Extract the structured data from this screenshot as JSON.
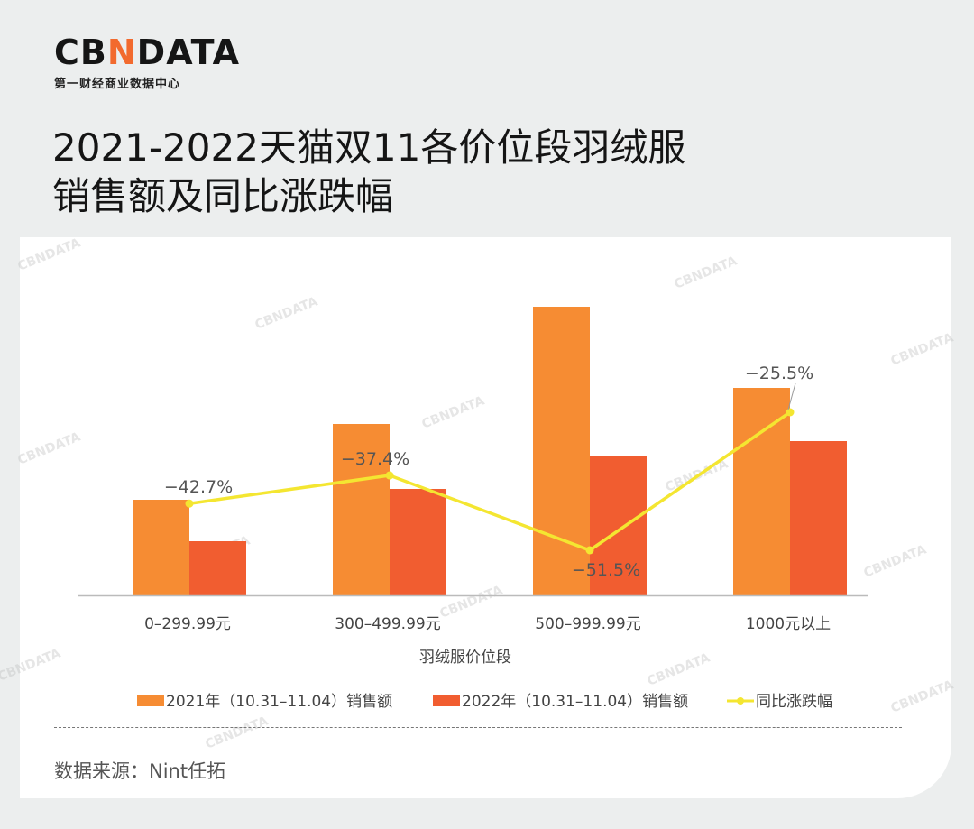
{
  "logo": {
    "main_pre": "CB",
    "main_accent": "N",
    "main_post": "DATA",
    "sub": "第一财经商业数据中心"
  },
  "title_line1": "2021-2022天猫双11各价位段羽绒服",
  "title_line2": "销售额及同比涨跌幅",
  "source": "数据来源：Nint任拓",
  "colors": {
    "bar2021": "#f68c33",
    "bar2022": "#f15d30",
    "line": "#f4e631",
    "axis": "#bbbbbb",
    "text": "#444444"
  },
  "chart_data": {
    "type": "bar+line",
    "xlabel": "羽绒服价位段",
    "categories": [
      "0–299.99元",
      "300–499.99元",
      "500–999.99元",
      "1000元以上"
    ],
    "series": [
      {
        "name": "2021年（10.31–11.04）销售额",
        "type": "bar",
        "values": [
          106,
          190,
          320,
          230
        ]
      },
      {
        "name": "2022年（10.31–11.04）销售额",
        "type": "bar",
        "values": [
          60,
          118,
          155,
          171
        ]
      },
      {
        "name": "同比涨跌幅",
        "type": "line",
        "values": [
          -42.7,
          -37.4,
          -51.5,
          -25.5
        ],
        "labels": [
          "−42.7%",
          "−37.4%",
          "−51.5%",
          "−25.5%"
        ]
      }
    ],
    "ylim_bars": [
      0,
      320
    ],
    "ylim_line": [
      -51.5,
      -25.5
    ],
    "grid": false,
    "legend": "bottom"
  }
}
